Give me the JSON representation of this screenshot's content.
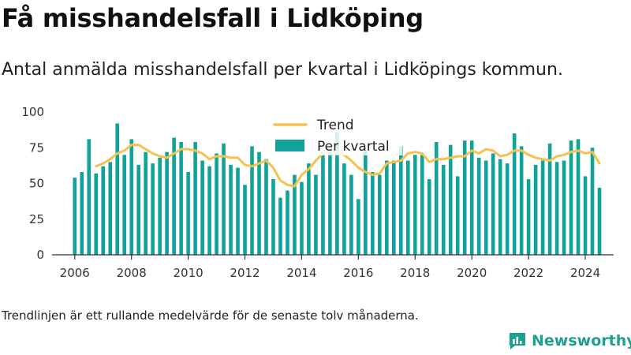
{
  "title": "Få misshandelsfall i Lidköping",
  "subtitle": "Antal anmälda misshandelsfall per kvartal i Lidköpings kommun.",
  "footnote": "Trendlinjen är ett rullande medelvärde för de senaste tolv månaderna.",
  "brand": "Newsworthy",
  "colors": {
    "bar": "#10A39A",
    "trend": "#F7C150",
    "axis": "#333333",
    "grid": "#dddddd",
    "brand": "#1f9e92"
  },
  "chart_data": {
    "type": "bar",
    "x": [
      2006.0,
      2006.25,
      2006.5,
      2006.75,
      2007.0,
      2007.25,
      2007.5,
      2007.75,
      2008.0,
      2008.25,
      2008.5,
      2008.75,
      2009.0,
      2009.25,
      2009.5,
      2009.75,
      2010.0,
      2010.25,
      2010.5,
      2010.75,
      2011.0,
      2011.25,
      2011.5,
      2011.75,
      2012.0,
      2012.25,
      2012.5,
      2012.75,
      2013.0,
      2013.25,
      2013.5,
      2013.75,
      2014.0,
      2014.25,
      2014.5,
      2014.75,
      2015.0,
      2015.25,
      2015.5,
      2015.75,
      2016.0,
      2016.25,
      2016.5,
      2016.75,
      2017.0,
      2017.25,
      2017.5,
      2017.75,
      2018.0,
      2018.25,
      2018.5,
      2018.75,
      2019.0,
      2019.25,
      2019.5,
      2019.75,
      2020.0,
      2020.25,
      2020.5,
      2020.75,
      2021.0,
      2021.25,
      2021.5,
      2021.75,
      2022.0,
      2022.25,
      2022.5,
      2022.75,
      2023.0,
      2023.25,
      2023.5,
      2023.75,
      2024.0,
      2024.25,
      2024.5
    ],
    "series": [
      {
        "name": "Per kvartal",
        "type": "bar",
        "values": [
          54,
          58,
          81,
          57,
          62,
          65,
          92,
          70,
          81,
          63,
          72,
          64,
          68,
          72,
          82,
          79,
          58,
          79,
          66,
          62,
          71,
          78,
          63,
          61,
          49,
          76,
          72,
          67,
          53,
          40,
          45,
          56,
          51,
          64,
          56,
          72,
          75,
          86,
          64,
          56,
          39,
          73,
          58,
          56,
          66,
          66,
          76,
          66,
          70,
          70,
          53,
          79,
          63,
          77,
          55,
          80,
          80,
          68,
          66,
          71,
          67,
          64,
          85,
          76,
          53,
          63,
          66,
          78,
          65,
          66,
          80,
          81,
          55,
          75,
          47
        ]
      },
      {
        "name": "Trend",
        "type": "line",
        "values": [
          null,
          null,
          null,
          62,
          64,
          67,
          71,
          73,
          77,
          77,
          74,
          71,
          69,
          68,
          71,
          74,
          74,
          73,
          71,
          67,
          69,
          69,
          68,
          68,
          63,
          62,
          64,
          66,
          61,
          52,
          49,
          48,
          56,
          60,
          66,
          71,
          73,
          72,
          70,
          66,
          61,
          58,
          56,
          57,
          64,
          65,
          66,
          71,
          72,
          71,
          65,
          67,
          67,
          68,
          69,
          69,
          73,
          71,
          74,
          73,
          69,
          70,
          73,
          73,
          70,
          68,
          67,
          66,
          69,
          70,
          72,
          73,
          71,
          72,
          64
        ]
      }
    ],
    "x_ticks": [
      2006,
      2008,
      2010,
      2012,
      2014,
      2016,
      2018,
      2020,
      2022,
      2024
    ],
    "y_ticks": [
      0,
      25,
      50,
      75,
      100
    ],
    "ylim": [
      0,
      100
    ],
    "xlim": [
      2005.2,
      2025.0
    ],
    "legend": {
      "position": "top-center",
      "entries": [
        "Trend",
        "Per kvartal"
      ]
    },
    "grid": false
  }
}
